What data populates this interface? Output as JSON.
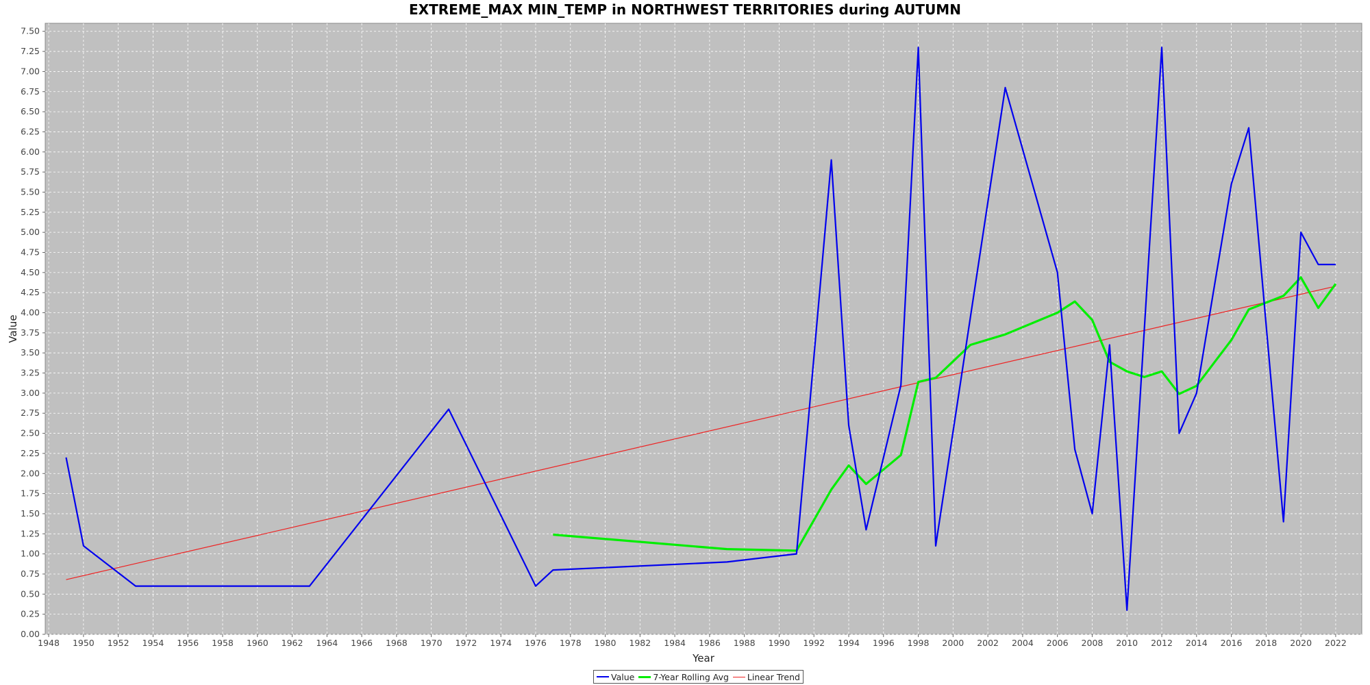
{
  "chart_data": {
    "type": "line",
    "title": "EXTREME_MAX MIN_TEMP in NORTHWEST TERRITORIES during AUTUMN",
    "xlabel": "Year",
    "ylabel": "Value",
    "xlim": [
      1947.8,
      2023.5
    ],
    "ylim": [
      0,
      7.6
    ],
    "x_ticks": [
      1948,
      1950,
      1952,
      1954,
      1956,
      1958,
      1960,
      1962,
      1964,
      1966,
      1968,
      1970,
      1972,
      1974,
      1976,
      1978,
      1980,
      1982,
      1984,
      1986,
      1988,
      1990,
      1992,
      1994,
      1996,
      1998,
      2000,
      2002,
      2004,
      2006,
      2008,
      2010,
      2012,
      2014,
      2016,
      2018,
      2020,
      2022
    ],
    "y_ticks": [
      "0.00",
      "0.25",
      "0.50",
      "0.75",
      "1.00",
      "1.25",
      "1.50",
      "1.75",
      "2.00",
      "2.25",
      "2.50",
      "2.75",
      "3.00",
      "3.25",
      "3.50",
      "3.75",
      "4.00",
      "4.25",
      "4.50",
      "4.75",
      "5.00",
      "5.25",
      "5.50",
      "5.75",
      "6.00",
      "6.25",
      "6.50",
      "6.75",
      "7.00",
      "7.25",
      "7.50"
    ],
    "grid": true,
    "legend_position": "bottom-center",
    "colors": {
      "plot_background": "#c0c0c0",
      "value": "#0000ee",
      "rolling": "#00ee00",
      "trend": "#ee2222"
    },
    "series": [
      {
        "name": "Value",
        "x": [
          1949,
          1950,
          1953,
          1963,
          1971,
          1976,
          1977,
          1987,
          1991,
          1993,
          1994,
          1995,
          1997,
          1998,
          1999,
          2003,
          2006,
          2007,
          2008,
          2009,
          2010,
          2012,
          2013,
          2014,
          2016,
          2017,
          2019,
          2020,
          2021,
          2022
        ],
        "y": [
          2.2,
          1.1,
          0.6,
          0.6,
          2.8,
          0.6,
          0.8,
          0.9,
          1.0,
          5.9,
          2.6,
          1.3,
          3.1,
          7.3,
          1.1,
          6.8,
          4.5,
          2.3,
          1.5,
          3.6,
          0.3,
          7.3,
          2.5,
          3.0,
          5.6,
          6.3,
          1.4,
          5.0,
          4.6,
          4.6
        ]
      },
      {
        "name": "7-Year Rolling Avg",
        "x": [
          1977,
          1987,
          1991,
          1993,
          1994,
          1995,
          1997,
          1998,
          1999,
          2001,
          2003,
          2006,
          2007,
          2008,
          2009,
          2010,
          2011,
          2012,
          2013,
          2014,
          2016,
          2017,
          2019,
          2020,
          2021,
          2022
        ],
        "y": [
          1.24,
          1.06,
          1.04,
          1.8,
          2.1,
          1.87,
          2.23,
          3.14,
          3.19,
          3.6,
          3.73,
          4.0,
          4.14,
          3.91,
          3.39,
          3.27,
          3.2,
          3.27,
          2.99,
          3.09,
          3.66,
          4.04,
          4.21,
          4.44,
          4.06,
          4.36
        ]
      },
      {
        "name": "Linear Trend",
        "x": [
          1949,
          2022
        ],
        "y": [
          0.68,
          4.33
        ]
      }
    ]
  }
}
